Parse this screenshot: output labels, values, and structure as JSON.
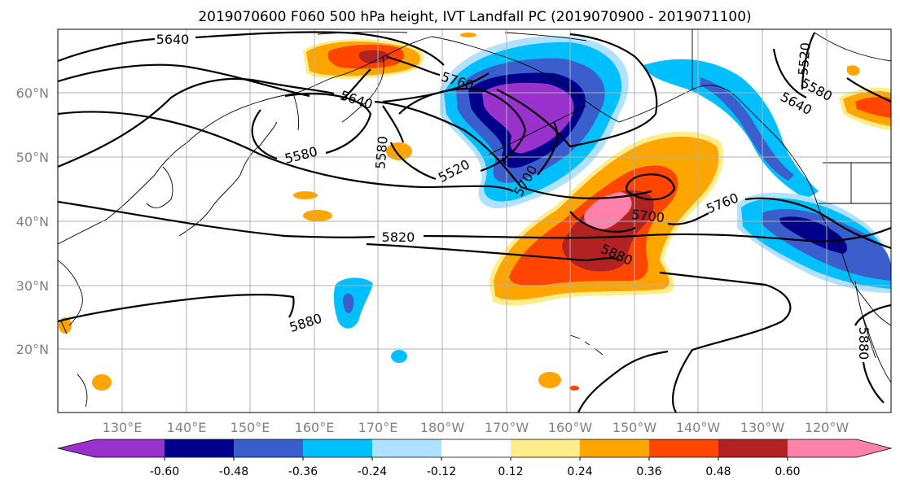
{
  "title": "2019070600 F060 500 hPa height, IVT Landfall PC (2019070900 - 2019071100)",
  "map": {
    "lat_labels": [
      "60°N",
      "50°N",
      "40°N",
      "30°N",
      "20°N"
    ],
    "lon_labels": [
      "130°E",
      "140°E",
      "150°E",
      "160°E",
      "170°E",
      "180°W",
      "170°W",
      "160°W",
      "150°W",
      "140°W",
      "130°W",
      "120°W"
    ],
    "contour_labels": [
      "5640",
      "5640",
      "5760",
      "5580",
      "5580",
      "5520",
      "5700",
      "5700",
      "5760",
      "5820",
      "5880",
      "5880",
      "5880",
      "5640",
      "5580",
      "5520"
    ]
  },
  "colorbar": {
    "colors": [
      "#9932cc",
      "#00008b",
      "#3a5fcd",
      "#00bfff",
      "#b0e2ff",
      "#ffffff",
      "#ffec8b",
      "#ffa500",
      "#ff4500",
      "#b22222",
      "#ff82ab"
    ],
    "tick_labels": [
      "-0.60",
      "-0.48",
      "-0.36",
      "-0.24",
      "-0.12",
      "0.12",
      "0.24",
      "0.36",
      "0.48",
      "0.60"
    ]
  }
}
